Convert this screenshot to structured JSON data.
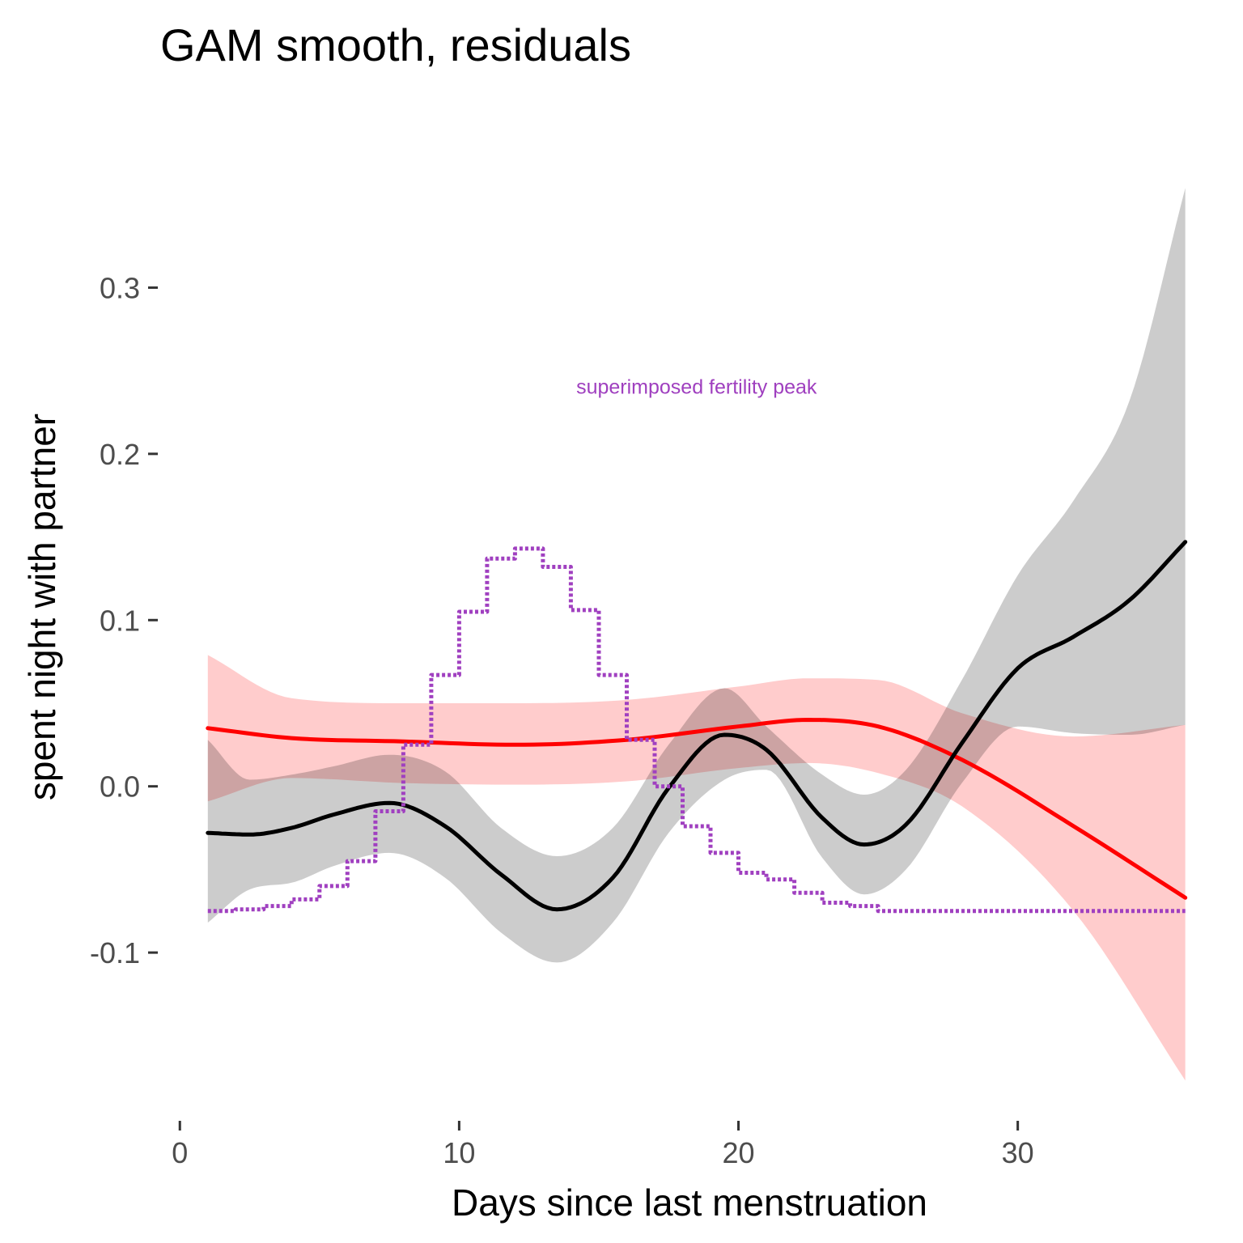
{
  "chart_data": {
    "type": "line",
    "title": "GAM smooth, residuals",
    "xlabel": "Days since last menstruation",
    "ylabel": "spent night with partner",
    "xlim": [
      -0.5,
      36.5
    ],
    "ylim": [
      -0.19,
      0.4
    ],
    "x_ticks": [
      0,
      10,
      20,
      30
    ],
    "x_tick_labels": [
      "0",
      "10",
      "20",
      "30"
    ],
    "y_ticks": [
      -0.1,
      0.0,
      0.1,
      0.2,
      0.3
    ],
    "y_tick_labels": [
      "-0.1",
      "0.0",
      "0.1",
      "0.2",
      "0.3"
    ],
    "grid": false,
    "annotation": {
      "text": "superimposed fertility peak",
      "x": 18.5,
      "y": 0.24,
      "color": "#9f3fbf"
    },
    "series": [
      {
        "color": "#ff0000",
        "ribbon_color": "#ff0000",
        "ribbon_opacity": 0.2,
        "x": [
          1,
          4,
          8,
          12,
          16,
          20,
          22.5,
          25,
          28,
          32,
          36
        ],
        "y": [
          0.035,
          0.029,
          0.027,
          0.025,
          0.028,
          0.036,
          0.04,
          0.036,
          0.016,
          -0.024,
          -0.067
        ],
        "lower": [
          -0.009,
          0.005,
          0.002,
          0.001,
          0.003,
          0.011,
          0.014,
          0.008,
          -0.012,
          -0.075,
          -0.177
        ],
        "upper": [
          0.079,
          0.053,
          0.05,
          0.05,
          0.052,
          0.06,
          0.065,
          0.064,
          0.044,
          0.03,
          0.037
        ]
      },
      {
        "color": "#000000",
        "ribbon_color": "#000000",
        "ribbon_opacity": 0.2,
        "x": [
          1,
          2.5,
          4,
          5.5,
          7.5,
          9.5,
          11.5,
          13.5,
          15.5,
          17.5,
          19.5,
          21,
          23,
          24.5,
          26,
          28,
          30,
          32,
          34,
          36
        ],
        "y": [
          -0.028,
          -0.029,
          -0.025,
          -0.017,
          -0.01,
          -0.024,
          -0.053,
          -0.074,
          -0.055,
          -0.001,
          0.031,
          0.022,
          -0.019,
          -0.035,
          -0.023,
          0.026,
          0.071,
          0.09,
          0.112,
          0.147
        ],
        "lower": [
          -0.082,
          -0.062,
          -0.058,
          -0.048,
          -0.04,
          -0.055,
          -0.088,
          -0.106,
          -0.082,
          -0.028,
          0.004,
          0.01,
          -0.043,
          -0.065,
          -0.05,
          0.002,
          0.036,
          0.032,
          0.031,
          0.037
        ],
        "upper": [
          0.028,
          0.004,
          0.007,
          0.012,
          0.019,
          0.009,
          -0.025,
          -0.042,
          -0.025,
          0.025,
          0.059,
          0.036,
          0.007,
          -0.005,
          0.01,
          0.064,
          0.127,
          0.172,
          0.232,
          0.36
        ]
      },
      {
        "color": "#a040c0",
        "dashed": true,
        "step": true,
        "x": [
          1,
          2,
          3,
          4,
          5,
          6,
          7,
          8,
          9,
          10,
          11,
          12,
          13,
          14,
          15,
          16,
          17,
          18,
          19,
          20,
          21,
          22,
          23,
          24,
          25,
          30,
          36
        ],
        "y": [
          -0.075,
          -0.074,
          -0.072,
          -0.068,
          -0.06,
          -0.045,
          -0.015,
          0.025,
          0.067,
          0.105,
          0.137,
          0.143,
          0.132,
          0.106,
          0.067,
          0.028,
          0.0,
          -0.024,
          -0.04,
          -0.052,
          -0.056,
          -0.064,
          -0.07,
          -0.072,
          -0.075,
          -0.075,
          -0.075
        ]
      }
    ]
  }
}
